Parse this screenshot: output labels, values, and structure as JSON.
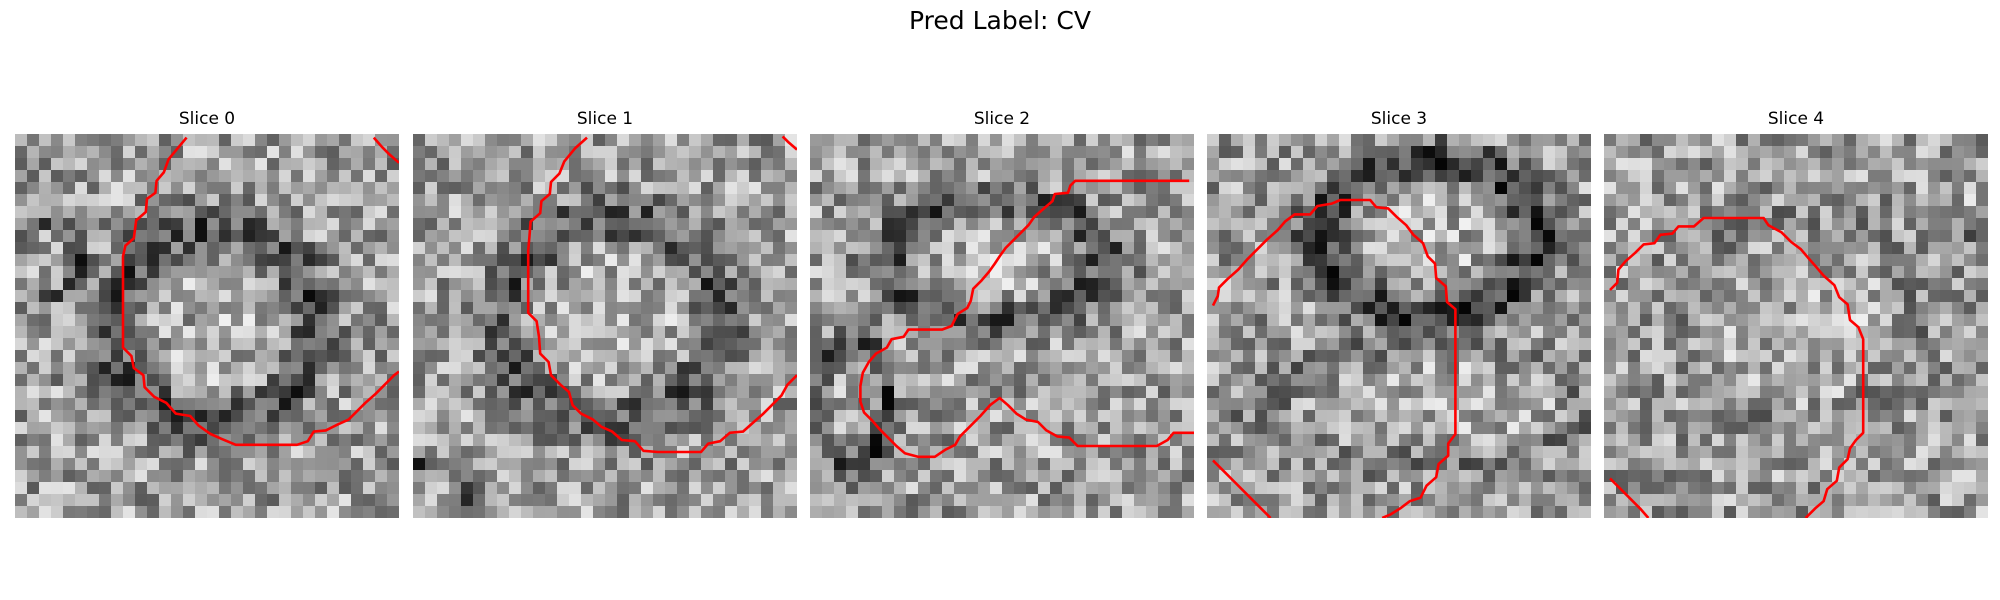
{
  "suptitle": "Pred Label: CV",
  "contour_color": "#ff0000",
  "slices": [
    {
      "title": "Slice 0",
      "grid_size": 32,
      "contours": [
        [
          [
            14.3,
            0.3
          ],
          [
            12.8,
            2.1
          ],
          [
            12.4,
            3.2
          ],
          [
            11.8,
            3.9
          ],
          [
            11.7,
            4.9
          ],
          [
            11.0,
            5.4
          ],
          [
            10.9,
            6.5
          ],
          [
            10.1,
            7.2
          ],
          [
            9.9,
            8.7
          ],
          [
            9.2,
            9.3
          ],
          [
            9.0,
            10.2
          ],
          [
            9.0,
            11.5
          ],
          [
            9.0,
            12.8
          ],
          [
            9.0,
            14.1
          ],
          [
            9.0,
            15.4
          ],
          [
            9.0,
            16.5
          ],
          [
            9.0,
            17.8
          ],
          [
            9.7,
            18.5
          ],
          [
            9.9,
            19.5
          ],
          [
            10.7,
            20.1
          ],
          [
            10.8,
            21.1
          ],
          [
            11.6,
            21.9
          ],
          [
            12.6,
            22.4
          ],
          [
            13.4,
            23.3
          ],
          [
            14.6,
            23.5
          ],
          [
            15.3,
            24.3
          ],
          [
            16.3,
            25.0
          ],
          [
            17.2,
            25.4
          ],
          [
            18.4,
            25.9
          ],
          [
            19.6,
            25.9
          ],
          [
            20.9,
            25.9
          ],
          [
            22.2,
            25.9
          ],
          [
            23.5,
            25.9
          ],
          [
            24.4,
            25.6
          ],
          [
            24.9,
            24.8
          ],
          [
            25.9,
            24.7
          ],
          [
            26.9,
            24.2
          ],
          [
            27.8,
            23.8
          ],
          [
            28.5,
            23.1
          ],
          [
            29.2,
            22.4
          ],
          [
            30.0,
            21.7
          ],
          [
            30.8,
            20.9
          ],
          [
            31.6,
            20.1
          ],
          [
            32.0,
            19.8
          ]
        ],
        [
          [
            29.9,
            0.3
          ],
          [
            30.6,
            1.1
          ],
          [
            31.2,
            1.7
          ],
          [
            32.0,
            2.4
          ]
        ]
      ]
    },
    {
      "title": "Slice 1",
      "grid_size": 32,
      "contours": [
        [
          [
            14.5,
            0.3
          ],
          [
            13.5,
            1.2
          ],
          [
            12.6,
            2.3
          ],
          [
            12.2,
            3.3
          ],
          [
            11.5,
            4.0
          ],
          [
            11.4,
            5.0
          ],
          [
            10.7,
            5.6
          ],
          [
            10.6,
            6.6
          ],
          [
            9.8,
            7.3
          ],
          [
            9.7,
            8.6
          ],
          [
            9.6,
            9.7
          ],
          [
            9.6,
            11.0
          ],
          [
            9.6,
            12.3
          ],
          [
            9.6,
            13.6
          ],
          [
            9.6,
            14.9
          ],
          [
            10.3,
            15.6
          ],
          [
            10.5,
            16.9
          ],
          [
            10.6,
            18.3
          ],
          [
            11.3,
            19.0
          ],
          [
            11.5,
            20.1
          ],
          [
            12.3,
            20.9
          ],
          [
            13.0,
            21.5
          ],
          [
            13.3,
            22.6
          ],
          [
            14.0,
            23.3
          ],
          [
            15.0,
            23.8
          ],
          [
            15.7,
            24.4
          ],
          [
            16.6,
            24.8
          ],
          [
            17.4,
            25.5
          ],
          [
            18.5,
            25.6
          ],
          [
            19.2,
            26.4
          ],
          [
            20.4,
            26.5
          ],
          [
            21.7,
            26.5
          ],
          [
            23.0,
            26.5
          ],
          [
            24.0,
            26.5
          ],
          [
            24.6,
            25.8
          ],
          [
            25.6,
            25.6
          ],
          [
            26.4,
            24.9
          ],
          [
            27.5,
            24.8
          ],
          [
            28.4,
            24.0
          ],
          [
            29.2,
            23.3
          ],
          [
            29.9,
            22.6
          ],
          [
            30.7,
            21.8
          ],
          [
            31.2,
            20.9
          ],
          [
            31.7,
            20.4
          ],
          [
            32.0,
            20.1
          ]
        ],
        [
          [
            30.8,
            0.2
          ],
          [
            31.3,
            0.7
          ],
          [
            32.0,
            1.3
          ]
        ]
      ]
    },
    {
      "title": "Slice 2",
      "grid_size": 32,
      "contours": [
        [
          [
            31.6,
            3.9
          ],
          [
            30.5,
            3.9
          ],
          [
            29.1,
            3.9
          ],
          [
            27.7,
            3.9
          ],
          [
            26.3,
            3.9
          ],
          [
            24.9,
            3.9
          ],
          [
            23.5,
            3.9
          ],
          [
            22.1,
            3.9
          ],
          [
            21.7,
            4.3
          ],
          [
            21.5,
            4.9
          ],
          [
            20.4,
            5.0
          ],
          [
            20.2,
            5.6
          ],
          [
            19.5,
            6.2
          ],
          [
            18.7,
            6.9
          ],
          [
            18.2,
            7.6
          ],
          [
            17.6,
            8.2
          ],
          [
            17.0,
            8.8
          ],
          [
            16.3,
            9.5
          ],
          [
            15.8,
            10.2
          ],
          [
            15.4,
            10.8
          ],
          [
            14.9,
            11.5
          ],
          [
            14.3,
            12.2
          ],
          [
            13.6,
            12.9
          ],
          [
            13.4,
            13.9
          ],
          [
            13.1,
            14.5
          ],
          [
            12.3,
            15.0
          ],
          [
            11.8,
            16.0
          ],
          [
            11.0,
            16.3
          ],
          [
            10.1,
            16.3
          ],
          [
            9.2,
            16.3
          ],
          [
            8.2,
            16.3
          ],
          [
            7.8,
            16.9
          ],
          [
            6.8,
            17.1
          ],
          [
            6.4,
            17.8
          ],
          [
            5.5,
            18.3
          ],
          [
            4.9,
            19.0
          ],
          [
            4.4,
            19.9
          ],
          [
            4.2,
            21.0
          ],
          [
            4.2,
            22.3
          ],
          [
            4.5,
            23.2
          ],
          [
            5.2,
            23.9
          ],
          [
            5.8,
            24.6
          ],
          [
            6.5,
            25.3
          ],
          [
            7.2,
            26.0
          ],
          [
            7.9,
            26.6
          ],
          [
            9.0,
            26.9
          ],
          [
            10.4,
            26.9
          ],
          [
            11.3,
            26.3
          ],
          [
            12.1,
            25.9
          ],
          [
            12.5,
            25.2
          ],
          [
            13.3,
            24.4
          ],
          [
            14.2,
            23.5
          ],
          [
            15.0,
            22.6
          ],
          [
            15.8,
            22.0
          ],
          [
            16.5,
            22.6
          ],
          [
            17.2,
            23.3
          ],
          [
            18.0,
            23.8
          ],
          [
            19.0,
            24.0
          ],
          [
            19.7,
            24.7
          ],
          [
            20.6,
            25.2
          ],
          [
            21.6,
            25.3
          ],
          [
            22.3,
            26.0
          ],
          [
            23.5,
            26.0
          ],
          [
            24.8,
            26.0
          ],
          [
            26.2,
            26.0
          ],
          [
            27.6,
            26.0
          ],
          [
            28.9,
            26.0
          ],
          [
            29.8,
            25.5
          ],
          [
            30.3,
            24.9
          ],
          [
            31.2,
            24.9
          ],
          [
            32.0,
            24.9
          ]
        ]
      ]
    },
    {
      "title": "Slice 3",
      "grid_size": 32,
      "contours": [
        [
          [
            0.5,
            14.3
          ],
          [
            0.9,
            13.5
          ],
          [
            1.0,
            12.8
          ],
          [
            1.7,
            12.1
          ],
          [
            2.6,
            11.3
          ],
          [
            3.4,
            10.4
          ],
          [
            4.2,
            9.6
          ],
          [
            5.0,
            8.8
          ],
          [
            5.9,
            8.0
          ],
          [
            6.5,
            7.3
          ],
          [
            7.3,
            6.7
          ],
          [
            8.6,
            6.7
          ],
          [
            9.2,
            6.0
          ],
          [
            10.4,
            5.8
          ],
          [
            11.1,
            5.5
          ],
          [
            12.3,
            5.5
          ],
          [
            13.6,
            5.5
          ],
          [
            14.1,
            6.1
          ],
          [
            15.1,
            6.2
          ],
          [
            15.8,
            6.9
          ],
          [
            16.6,
            7.6
          ],
          [
            17.2,
            8.4
          ],
          [
            18.0,
            9.1
          ],
          [
            18.4,
            10.2
          ],
          [
            19.0,
            10.8
          ],
          [
            19.1,
            12.0
          ],
          [
            19.9,
            12.7
          ],
          [
            20.0,
            14.0
          ],
          [
            20.7,
            14.6
          ],
          [
            20.7,
            15.9
          ],
          [
            20.7,
            17.2
          ],
          [
            20.7,
            18.5
          ],
          [
            20.7,
            19.8
          ],
          [
            20.7,
            21.1
          ],
          [
            20.7,
            22.4
          ],
          [
            20.7,
            23.7
          ],
          [
            20.7,
            25.0
          ],
          [
            20.1,
            25.8
          ],
          [
            20.1,
            26.8
          ],
          [
            19.3,
            27.5
          ],
          [
            19.1,
            28.6
          ],
          [
            18.3,
            29.3
          ],
          [
            17.8,
            30.3
          ],
          [
            16.9,
            30.6
          ],
          [
            16.1,
            31.2
          ],
          [
            15.3,
            31.7
          ],
          [
            14.6,
            32.0
          ]
        ],
        [
          [
            0.5,
            27.2
          ],
          [
            1.4,
            28.1
          ],
          [
            2.3,
            29.0
          ],
          [
            3.2,
            29.9
          ],
          [
            4.0,
            30.7
          ],
          [
            4.9,
            31.6
          ],
          [
            5.3,
            32.0
          ]
        ]
      ]
    },
    {
      "title": "Slice 4",
      "grid_size": 32,
      "contours": [
        [
          [
            0.5,
            13.0
          ],
          [
            1.1,
            12.4
          ],
          [
            1.2,
            11.3
          ],
          [
            1.8,
            10.6
          ],
          [
            2.6,
            9.9
          ],
          [
            3.3,
            9.2
          ],
          [
            4.2,
            9.1
          ],
          [
            4.7,
            8.4
          ],
          [
            5.7,
            8.3
          ],
          [
            6.2,
            7.7
          ],
          [
            7.5,
            7.7
          ],
          [
            8.3,
            7.0
          ],
          [
            9.6,
            7.0
          ],
          [
            10.9,
            7.0
          ],
          [
            12.2,
            7.0
          ],
          [
            13.3,
            7.0
          ],
          [
            13.7,
            7.6
          ],
          [
            14.8,
            8.2
          ],
          [
            15.6,
            9.0
          ],
          [
            16.4,
            9.6
          ],
          [
            17.0,
            10.3
          ],
          [
            17.7,
            11.1
          ],
          [
            18.3,
            11.8
          ],
          [
            19.2,
            12.6
          ],
          [
            19.6,
            13.6
          ],
          [
            20.3,
            14.2
          ],
          [
            20.5,
            15.5
          ],
          [
            21.2,
            16.1
          ],
          [
            21.6,
            17.1
          ],
          [
            21.6,
            18.4
          ],
          [
            21.6,
            19.7
          ],
          [
            21.6,
            21.0
          ],
          [
            21.6,
            22.3
          ],
          [
            21.6,
            23.6
          ],
          [
            21.6,
            24.9
          ],
          [
            21.0,
            25.5
          ],
          [
            20.5,
            26.2
          ],
          [
            20.3,
            27.1
          ],
          [
            19.6,
            27.8
          ],
          [
            19.4,
            28.9
          ],
          [
            18.6,
            29.6
          ],
          [
            18.3,
            30.6
          ],
          [
            17.6,
            31.2
          ],
          [
            16.8,
            32.0
          ]
        ],
        [
          [
            0.5,
            28.7
          ],
          [
            1.4,
            29.6
          ],
          [
            2.2,
            30.4
          ],
          [
            3.0,
            31.2
          ],
          [
            3.7,
            32.0
          ]
        ]
      ]
    }
  ]
}
